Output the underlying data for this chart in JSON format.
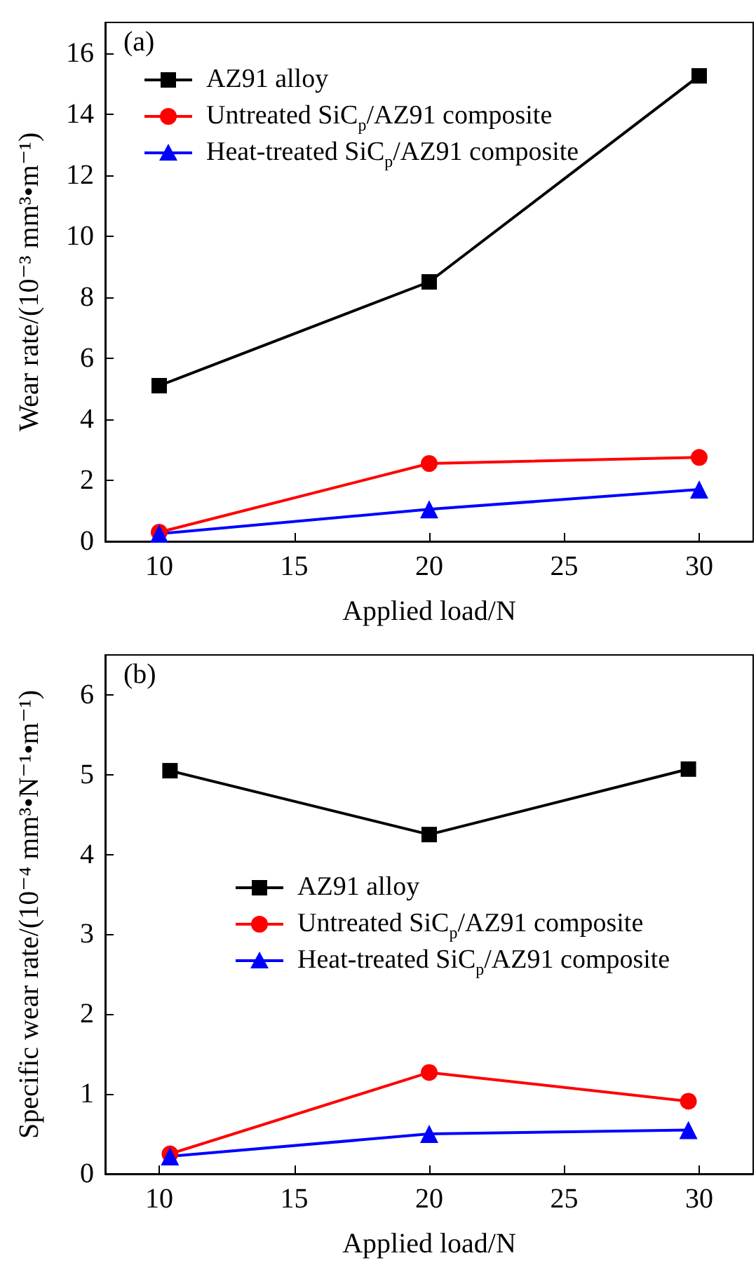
{
  "chart_data": [
    {
      "type": "line",
      "xlabel": "Applied load/N",
      "ylabel": "Wear rate/(10⁻³ mm³•m⁻¹)",
      "annotations": [
        "(a)"
      ],
      "x": [
        10,
        20,
        30
      ],
      "xlim": [
        8,
        32
      ],
      "xticks": [
        10,
        15,
        20,
        25,
        30
      ],
      "ylim": [
        0,
        17
      ],
      "yticks": [
        0,
        2,
        4,
        6,
        8,
        10,
        12,
        14,
        16
      ],
      "grid": false,
      "legend": "top left",
      "series": [
        {
          "name": "AZ91 alloy",
          "color": "#000000",
          "marker": "square",
          "values": [
            5.1,
            8.5,
            15.25
          ]
        },
        {
          "name": "Untreated SiC$_{p}$/AZ91 composite",
          "color": "#ff0000",
          "marker": "circle",
          "values": [
            0.3,
            2.55,
            2.75
          ]
        },
        {
          "name": "Heat-treated SiC$_{p}$/AZ91 composite",
          "color": "#0000ff",
          "marker": "triangle",
          "values": [
            0.25,
            1.05,
            1.7
          ]
        }
      ]
    },
    {
      "type": "line",
      "xlabel": "Applied load/N",
      "ylabel": "Specific wear rate/(10⁻⁴ mm³•N⁻¹•m⁻¹)",
      "annotations": [
        "(b)"
      ],
      "x": [
        10.4,
        20,
        29.6
      ],
      "xlim": [
        8,
        32
      ],
      "xticks": [
        10,
        15,
        20,
        25,
        30
      ],
      "ylim": [
        0,
        6.5
      ],
      "yticks": [
        0,
        1,
        2,
        3,
        4,
        5,
        6
      ],
      "grid": false,
      "legend": "left",
      "series": [
        {
          "name": "AZ91 alloy",
          "color": "#000000",
          "marker": "square",
          "values": [
            5.05,
            4.25,
            5.07
          ]
        },
        {
          "name": "Untreated SiC$_{p}$/AZ91 composite",
          "color": "#ff0000",
          "marker": "circle",
          "values": [
            0.25,
            1.27,
            0.91
          ]
        },
        {
          "name": "Heat-treated SiC$_{p}$/AZ91 composite",
          "color": "#0000ff",
          "marker": "triangle",
          "values": [
            0.22,
            0.5,
            0.55
          ]
        }
      ]
    }
  ]
}
